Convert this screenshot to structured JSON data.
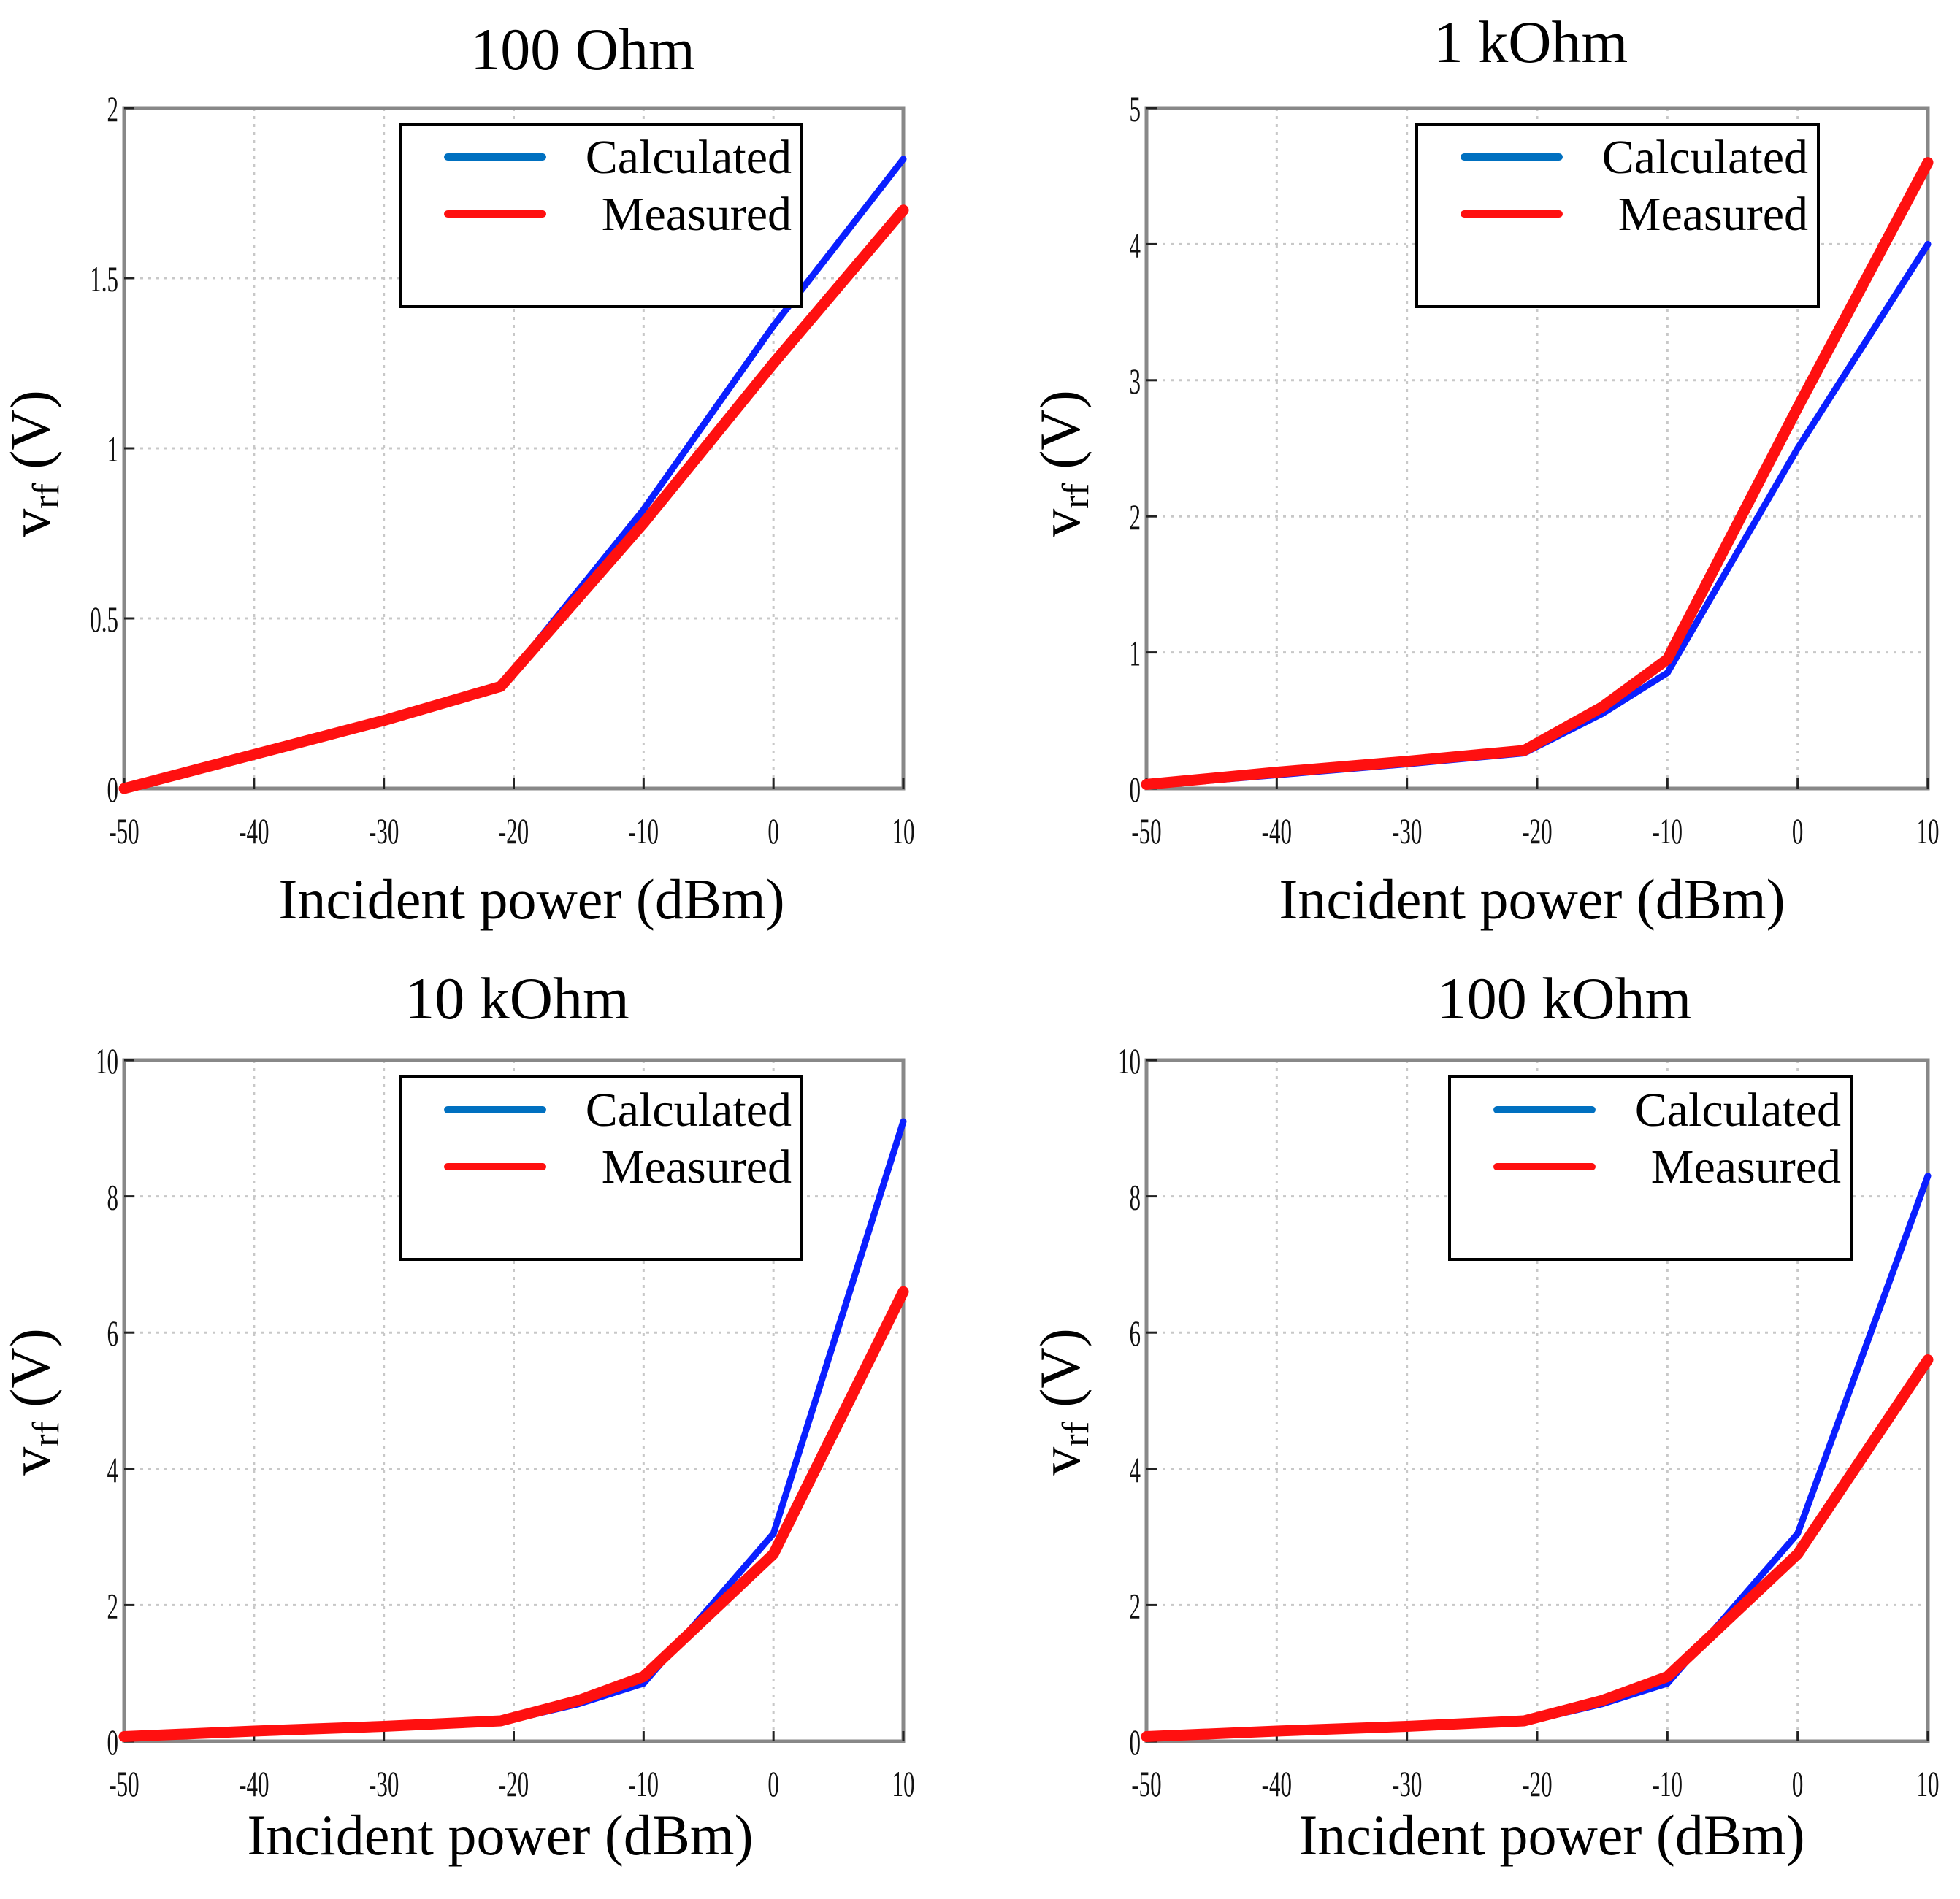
{
  "figure": {
    "x_axis_label": "Incident power (dBm)",
    "y_axis_label_main": "v",
    "y_axis_label_sub": "rf",
    "y_axis_label_unit": " (V)",
    "legend": [
      "Calculated",
      "Measured"
    ],
    "colors": {
      "calculated": "#0a1fff",
      "measured": "#ff1010",
      "legend_calculated": "#0070c0"
    }
  },
  "chart_data": [
    {
      "type": "line",
      "title": "100 Ohm",
      "xlabel": "Incident power (dBm)",
      "ylabel": "vrf (V)",
      "xlim": [
        -50,
        10
      ],
      "ylim": [
        0,
        2
      ],
      "xticks": [
        -50,
        -40,
        -30,
        -20,
        -10,
        0,
        10
      ],
      "xtick_labels": [
        "-50",
        "-40",
        "-30",
        "-20",
        "-10",
        "0",
        "10"
      ],
      "yticks": [
        0,
        0.5,
        1,
        1.5,
        2
      ],
      "ytick_labels": [
        "0",
        "0.5",
        "1",
        "1.5",
        "2"
      ],
      "grid": true,
      "legend_position": "top-right",
      "series": [
        {
          "name": "Calculated",
          "x": [
            -50,
            -40,
            -30,
            -21,
            -10,
            0,
            10
          ],
          "y": [
            0.0,
            0.1,
            0.2,
            0.3,
            0.82,
            1.36,
            1.85
          ]
        },
        {
          "name": "Measured",
          "x": [
            -50,
            -40,
            -30,
            -21,
            -10,
            0,
            10
          ],
          "y": [
            0.0,
            0.1,
            0.2,
            0.3,
            0.78,
            1.25,
            1.7
          ]
        }
      ]
    },
    {
      "type": "line",
      "title": "1 kOhm",
      "xlabel": "Incident power (dBm)",
      "ylabel": "vrf (V)",
      "xlim": [
        -50,
        10
      ],
      "ylim": [
        0,
        5
      ],
      "xticks": [
        -50,
        -40,
        -30,
        -20,
        -10,
        0,
        10
      ],
      "xtick_labels": [
        "-50",
        "-40",
        "-30",
        "-20",
        "-10",
        "0",
        "10"
      ],
      "yticks": [
        0,
        1,
        2,
        3,
        4,
        5
      ],
      "ytick_labels": [
        "0",
        "1",
        "2",
        "3",
        "4",
        "5"
      ],
      "grid": true,
      "legend_position": "top-right",
      "series": [
        {
          "name": "Calculated",
          "x": [
            -50,
            -40,
            -30,
            -21,
            -15,
            -10,
            0,
            10
          ],
          "y": [
            0.02,
            0.1,
            0.18,
            0.26,
            0.55,
            0.85,
            2.5,
            4.0
          ]
        },
        {
          "name": "Measured",
          "x": [
            -50,
            -40,
            -30,
            -21,
            -15,
            -10,
            0,
            10
          ],
          "y": [
            0.03,
            0.12,
            0.2,
            0.28,
            0.6,
            0.95,
            2.8,
            4.6
          ]
        }
      ]
    },
    {
      "type": "line",
      "title": "10 kOhm",
      "xlabel": "Incident power (dBm)",
      "ylabel": "vrf (V)",
      "xlim": [
        -50,
        10
      ],
      "ylim": [
        0,
        10
      ],
      "xticks": [
        -50,
        -40,
        -30,
        -20,
        -10,
        0,
        10
      ],
      "xtick_labels": [
        "-50",
        "-40",
        "-30",
        "-20",
        "-10",
        "0",
        "10"
      ],
      "yticks": [
        0,
        2,
        4,
        6,
        8,
        10
      ],
      "ytick_labels": [
        "0",
        "2",
        "4",
        "6",
        "8",
        "10"
      ],
      "grid": true,
      "legend_position": "top-right",
      "series": [
        {
          "name": "Calculated",
          "x": [
            -50,
            -40,
            -30,
            -21,
            -15,
            -10,
            0,
            10
          ],
          "y": [
            0.05,
            0.12,
            0.2,
            0.28,
            0.55,
            0.85,
            3.05,
            9.1
          ]
        },
        {
          "name": "Measured",
          "x": [
            -50,
            -40,
            -30,
            -21,
            -15,
            -10,
            0,
            10
          ],
          "y": [
            0.07,
            0.15,
            0.22,
            0.3,
            0.6,
            0.95,
            2.75,
            6.6
          ]
        }
      ]
    },
    {
      "type": "line",
      "title": "100 kOhm",
      "xlabel": "Incident power (dBm)",
      "ylabel": "vrf (V)",
      "xlim": [
        -50,
        10
      ],
      "ylim": [
        0,
        10
      ],
      "xticks": [
        -50,
        -40,
        -30,
        -20,
        -10,
        0,
        10
      ],
      "xtick_labels": [
        "-50",
        "-40",
        "-30",
        "-20",
        "-10",
        "0",
        "10"
      ],
      "yticks": [
        0,
        2,
        4,
        6,
        8,
        10
      ],
      "ytick_labels": [
        "0",
        "2",
        "4",
        "6",
        "8",
        "10"
      ],
      "grid": true,
      "legend_position": "top-right",
      "series": [
        {
          "name": "Calculated",
          "x": [
            -50,
            -40,
            -30,
            -21,
            -15,
            -10,
            0,
            10
          ],
          "y": [
            0.05,
            0.12,
            0.2,
            0.28,
            0.55,
            0.85,
            3.05,
            8.3
          ]
        },
        {
          "name": "Measured",
          "x": [
            -50,
            -40,
            -30,
            -21,
            -15,
            -10,
            0,
            10
          ],
          "y": [
            0.07,
            0.15,
            0.22,
            0.3,
            0.6,
            0.95,
            2.75,
            5.6
          ]
        }
      ]
    }
  ]
}
